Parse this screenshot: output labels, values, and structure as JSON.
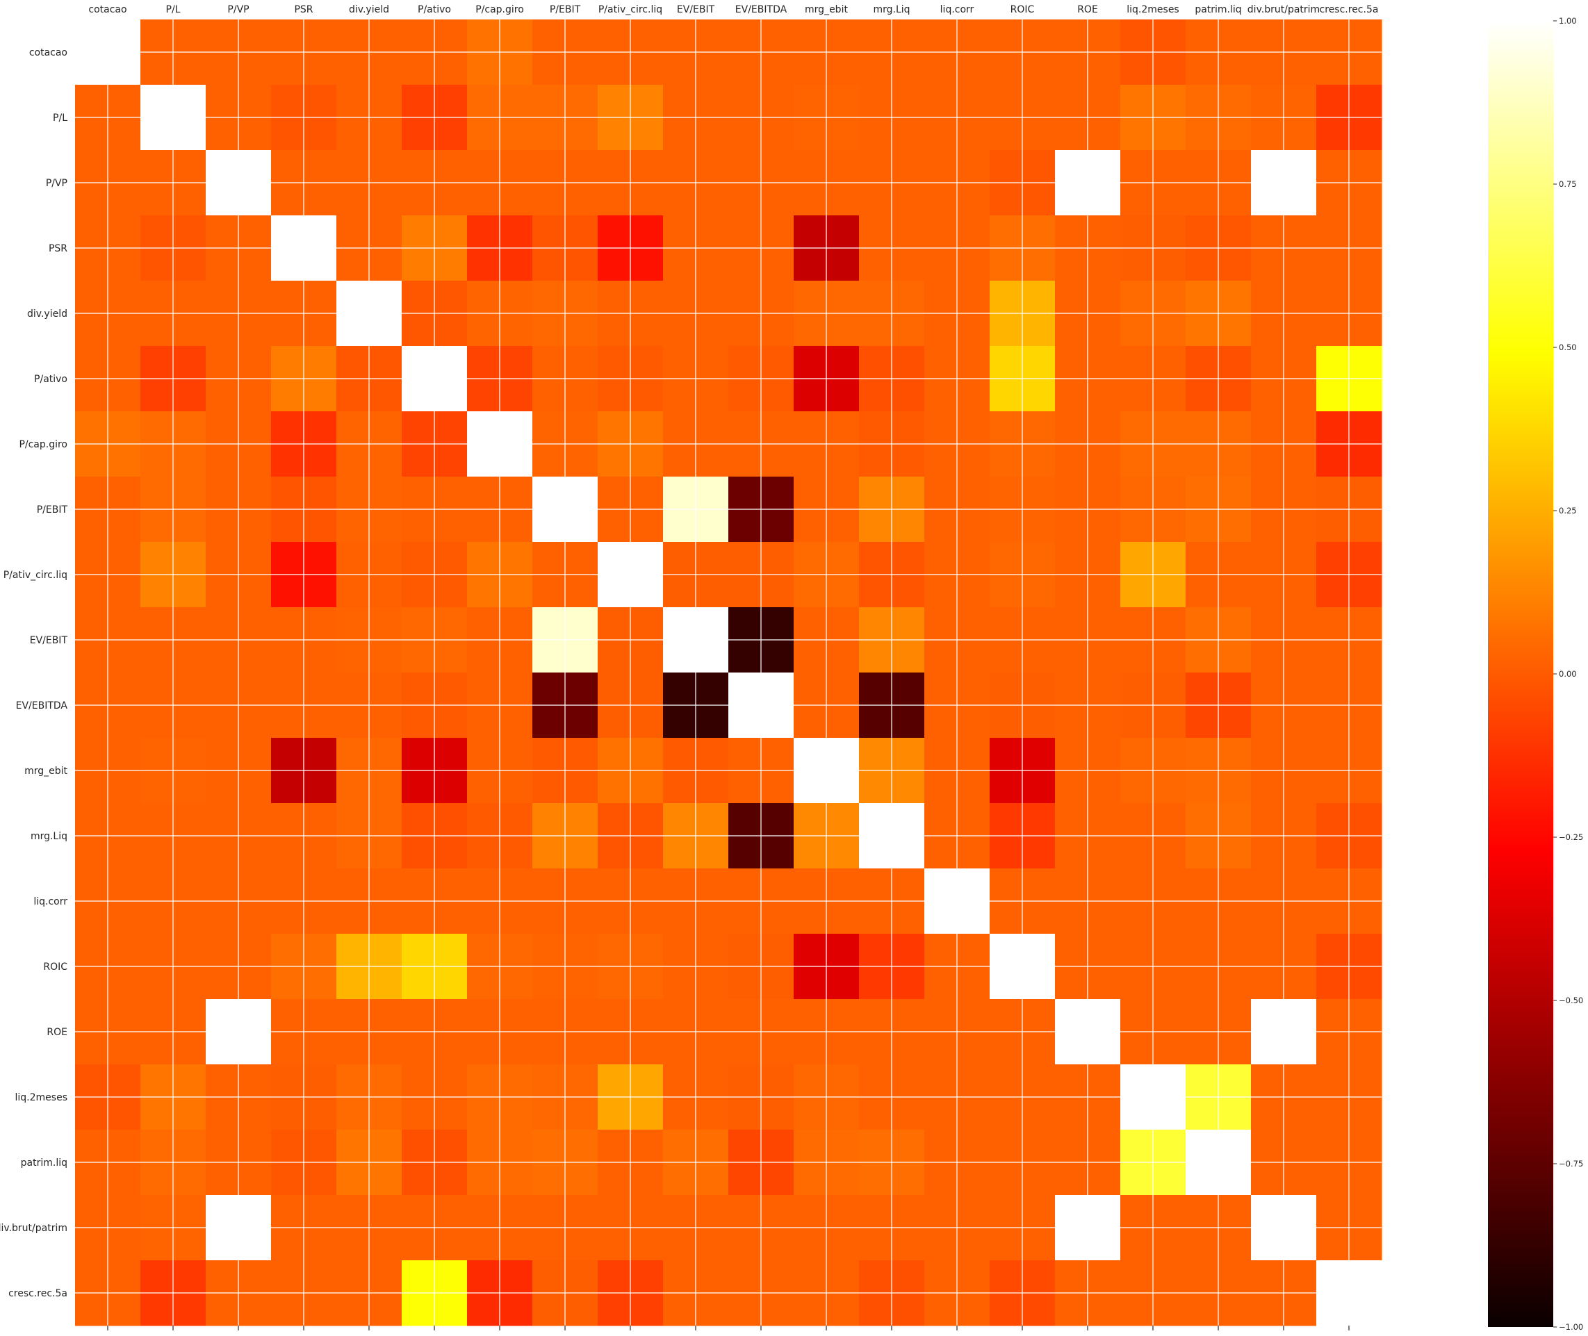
{
  "chart_data": {
    "type": "heatmap",
    "colormap": "hot",
    "labels": [
      "cotacao",
      "P/L",
      "P/VP",
      "PSR",
      "div.yield",
      "P/ativo",
      "P/cap.giro",
      "P/EBIT",
      "P/ativ_circ.liq",
      "EV/EBIT",
      "EV/EBITDA",
      "mrg_ebit",
      "mrg.Liq",
      "liq.corr",
      "ROIC",
      "ROE",
      "liq.2meses",
      "patrim.liq",
      "div.brut/patrim",
      "cresc.rec.5a"
    ],
    "matrix": [
      [
        null,
        0.02,
        0.02,
        0.02,
        0.02,
        0.02,
        0.07,
        0.02,
        0.02,
        0.02,
        0.02,
        0.02,
        0.02,
        0.02,
        0.02,
        0.02,
        -0.02,
        0.02,
        0.02,
        0.02
      ],
      [
        0.02,
        1.0,
        0.02,
        -0.02,
        0.02,
        -0.08,
        0.05,
        0.05,
        0.12,
        0.02,
        0.02,
        0.03,
        0.02,
        0.02,
        0.02,
        0.02,
        0.08,
        0.05,
        0.03,
        -0.1
      ],
      [
        0.02,
        0.02,
        1.0,
        0.02,
        0.02,
        0.02,
        0.02,
        0.02,
        0.02,
        0.02,
        0.02,
        0.02,
        0.02,
        0.02,
        -0.01,
        1.0,
        0.02,
        0.02,
        1.0,
        0.02
      ],
      [
        0.02,
        -0.02,
        0.02,
        1.0,
        0.02,
        0.1,
        -0.12,
        -0.02,
        -0.22,
        0.02,
        0.02,
        -0.47,
        0.02,
        0.02,
        0.06,
        0.02,
        0.01,
        -0.01,
        0.02,
        0.02
      ],
      [
        0.02,
        0.02,
        0.02,
        0.02,
        1.0,
        -0.01,
        0.03,
        0.04,
        0.02,
        0.02,
        0.02,
        0.04,
        0.04,
        0.02,
        0.27,
        0.02,
        0.05,
        0.08,
        0.02,
        0.02
      ],
      [
        0.02,
        -0.08,
        0.02,
        0.1,
        -0.01,
        1.0,
        -0.07,
        0.02,
        0.0,
        0.02,
        0.0,
        -0.4,
        -0.03,
        0.02,
        0.37,
        0.02,
        0.02,
        -0.03,
        0.02,
        0.5
      ],
      [
        0.07,
        0.05,
        0.02,
        -0.12,
        0.03,
        -0.07,
        1.0,
        0.03,
        0.08,
        0.02,
        0.02,
        0.02,
        0.0,
        0.02,
        0.04,
        0.02,
        0.05,
        0.05,
        0.02,
        -0.14
      ],
      [
        0.02,
        0.05,
        0.02,
        -0.02,
        0.03,
        0.02,
        0.02,
        1.0,
        0.02,
        0.9,
        -0.72,
        0.02,
        0.13,
        0.02,
        0.03,
        0.02,
        0.04,
        0.06,
        0.02,
        0.01
      ],
      [
        0.02,
        0.12,
        0.02,
        -0.22,
        0.02,
        0.0,
        0.08,
        0.02,
        1.0,
        0.01,
        0.01,
        0.05,
        -0.02,
        0.02,
        0.04,
        0.02,
        0.23,
        0.02,
        0.02,
        -0.08
      ],
      [
        0.02,
        0.02,
        0.02,
        0.02,
        0.03,
        0.04,
        0.02,
        0.9,
        0.01,
        1.0,
        -0.88,
        0.02,
        0.13,
        0.02,
        0.02,
        0.02,
        0.02,
        0.06,
        0.02,
        0.02
      ],
      [
        0.02,
        0.02,
        0.02,
        0.02,
        0.02,
        0.0,
        0.02,
        -0.72,
        0.01,
        -0.88,
        1.0,
        0.02,
        -0.78,
        0.02,
        0.01,
        0.02,
        0.01,
        -0.06,
        0.02,
        0.02
      ],
      [
        0.02,
        0.03,
        0.02,
        -0.47,
        0.04,
        -0.4,
        0.02,
        0.0,
        0.07,
        0.0,
        0.02,
        1.0,
        0.14,
        0.02,
        -0.39,
        0.02,
        0.04,
        0.05,
        0.02,
        0.02
      ],
      [
        0.02,
        0.02,
        0.02,
        0.02,
        0.04,
        -0.03,
        0.0,
        0.12,
        -0.02,
        0.13,
        -0.78,
        0.14,
        1.0,
        0.02,
        -0.1,
        0.02,
        0.02,
        0.06,
        0.02,
        -0.03
      ],
      [
        0.02,
        0.02,
        0.02,
        0.02,
        0.02,
        0.02,
        0.02,
        0.02,
        0.02,
        0.02,
        0.02,
        0.02,
        0.02,
        1.0,
        0.02,
        0.02,
        0.02,
        0.02,
        0.02,
        0.02
      ],
      [
        0.02,
        0.02,
        0.02,
        0.06,
        0.27,
        0.37,
        0.04,
        0.03,
        0.04,
        0.02,
        0.01,
        -0.39,
        -0.1,
        0.02,
        1.0,
        0.02,
        0.02,
        0.02,
        0.02,
        -0.05
      ],
      [
        0.02,
        0.02,
        1.0,
        0.02,
        0.02,
        0.02,
        0.02,
        0.02,
        0.02,
        0.02,
        0.02,
        0.02,
        0.02,
        0.02,
        0.02,
        1.0,
        0.02,
        0.02,
        1.0,
        0.02
      ],
      [
        -0.02,
        0.08,
        0.02,
        0.01,
        0.05,
        0.02,
        0.05,
        0.04,
        0.23,
        0.02,
        0.01,
        0.04,
        0.02,
        0.02,
        0.02,
        0.02,
        1.0,
        0.6,
        0.02,
        0.02
      ],
      [
        0.02,
        0.05,
        0.02,
        -0.01,
        0.08,
        -0.03,
        0.05,
        0.06,
        0.02,
        0.06,
        -0.06,
        0.05,
        0.06,
        0.02,
        0.02,
        0.02,
        0.6,
        1.0,
        0.02,
        0.02
      ],
      [
        0.02,
        0.03,
        1.0,
        0.02,
        0.02,
        0.02,
        0.02,
        0.02,
        0.02,
        0.02,
        0.02,
        0.02,
        0.02,
        0.02,
        0.02,
        1.0,
        0.02,
        0.02,
        1.0,
        0.02
      ],
      [
        0.02,
        -0.1,
        0.02,
        0.02,
        0.02,
        0.5,
        -0.14,
        0.01,
        -0.08,
        0.02,
        0.02,
        0.02,
        -0.03,
        0.02,
        -0.05,
        0.02,
        0.02,
        0.02,
        0.02,
        null
      ]
    ],
    "colorbar": {
      "min": -1.0,
      "max": 1.0,
      "ticks": [
        "−1.00",
        "−0.75",
        "−0.50",
        "−0.25",
        "0.00",
        "0.25",
        "0.50",
        "0.75",
        "1.00"
      ]
    },
    "grid": true
  }
}
